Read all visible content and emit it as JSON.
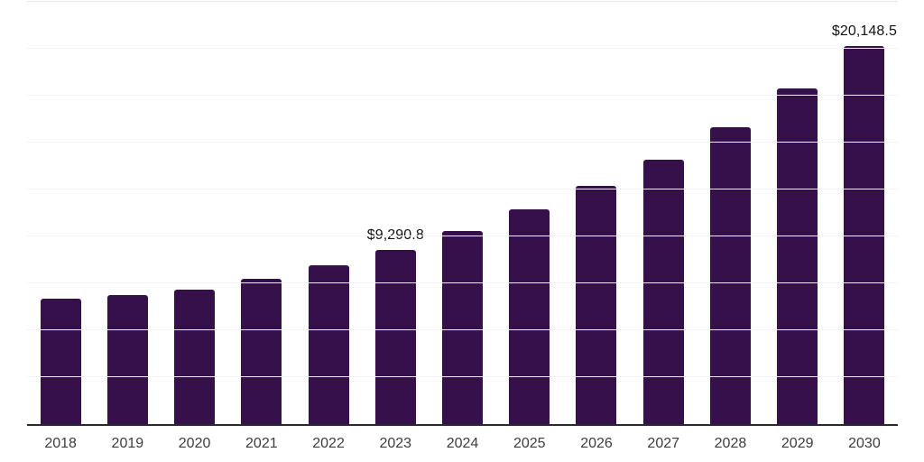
{
  "chart_data": {
    "type": "bar",
    "categories": [
      "2018",
      "2019",
      "2020",
      "2021",
      "2022",
      "2023",
      "2024",
      "2025",
      "2026",
      "2027",
      "2028",
      "2029",
      "2030"
    ],
    "values": [
      6690,
      6880,
      7180,
      7755,
      8470,
      9290.8,
      10280,
      11440,
      12670,
      14110,
      15840,
      17870,
      20148.5
    ],
    "data_labels": {
      "2023": "$9,290.8",
      "2030": "$20,148.5"
    },
    "ylim": [
      0,
      22500
    ],
    "grid_step": 2500,
    "grid": "horizontal",
    "legend_position": "none",
    "xlabel": "",
    "ylabel": "",
    "bar_color": "#36104a",
    "gridline_color": "#f4f4f4",
    "top_border_color": "#e9e9e9",
    "axis_line_color": "#2a2a2e",
    "tick_label_color": "#3d3d3d",
    "value_label_color": "#141414",
    "background_color": "#ffffff"
  }
}
